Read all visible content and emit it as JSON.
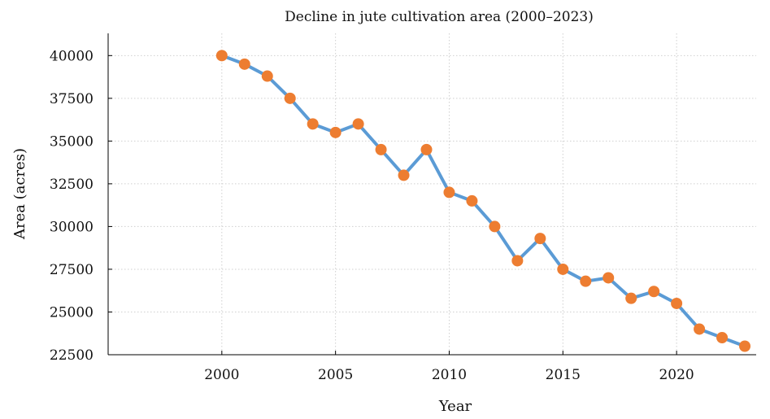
{
  "chart_data": {
    "type": "line",
    "title": "Decline in jute cultivation area (2000–2023)",
    "xlabel": "Year",
    "ylabel": "Area (acres)",
    "x": [
      2000,
      2001,
      2002,
      2003,
      2004,
      2005,
      2006,
      2007,
      2008,
      2009,
      2010,
      2011,
      2012,
      2013,
      2014,
      2015,
      2016,
      2017,
      2018,
      2019,
      2020,
      2021,
      2022,
      2023
    ],
    "series": [
      {
        "values": [
          40000,
          39500,
          38800,
          37500,
          36000,
          35500,
          36000,
          34500,
          33000,
          34500,
          32000,
          31500,
          30000,
          28000,
          29300,
          27500,
          26800,
          27000,
          25800,
          26200,
          25500,
          24000,
          23500,
          23000
        ]
      }
    ],
    "xlim": [
      1995,
      2023.5
    ],
    "ylim": [
      22500,
      41300
    ],
    "x_ticks": [
      2000,
      2005,
      2010,
      2015,
      2020
    ],
    "y_ticks": [
      22500,
      25000,
      27500,
      30000,
      32500,
      35000,
      37500,
      40000
    ],
    "grid": true,
    "legend": "none",
    "line_color": "#5b9bd5",
    "marker_color": "#ed7d31"
  }
}
